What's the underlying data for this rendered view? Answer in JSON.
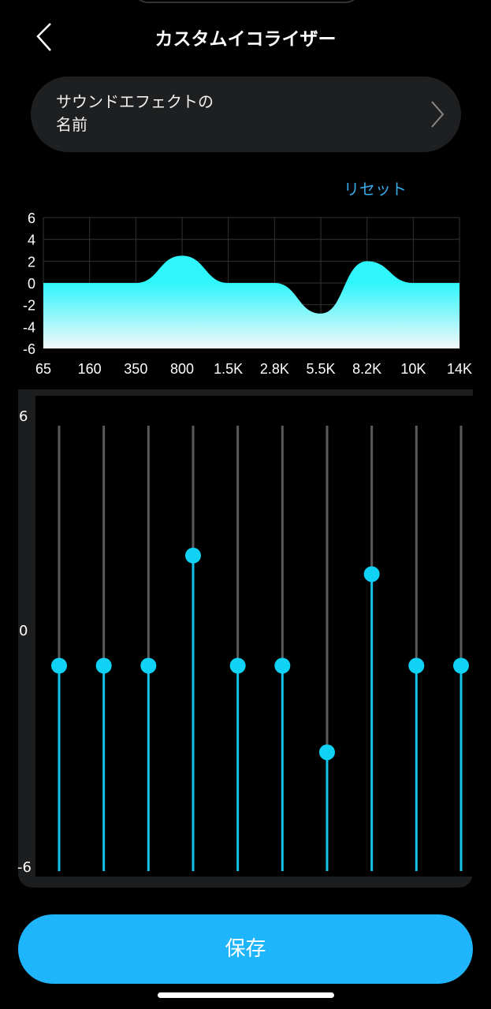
{
  "header": {
    "title": "カスタムイコライザー",
    "back_icon": "chevron-left-icon"
  },
  "sound_effect": {
    "name": "サウンドエフェクトの名前",
    "chevron_icon": "chevron-right-icon"
  },
  "reset_label": "リセット",
  "colors": {
    "accent": "#1fb5fb",
    "curve_top": "#2ff6fb",
    "curve_bottom": "#f4f8fa",
    "slider_active": "#16c3e8",
    "knob": "#0fd2f5",
    "reset": "#39a8e8"
  },
  "chart_data": {
    "type": "area",
    "categories": [
      "65",
      "160",
      "350",
      "800",
      "1.5K",
      "2.8K",
      "5.5K",
      "8.2K",
      "10K",
      "14K"
    ],
    "values": [
      0,
      0,
      0,
      2.5,
      0,
      0,
      -2.8,
      2,
      0,
      0
    ],
    "ylim": [
      -6,
      6
    ],
    "yticks": [
      "6",
      "4",
      "2",
      "0",
      "-2",
      "-4",
      "-6"
    ],
    "grid": true
  },
  "sliders": {
    "max_label": "6",
    "mid_label": "0",
    "min_label": "-6"
  },
  "save_label": "保存"
}
